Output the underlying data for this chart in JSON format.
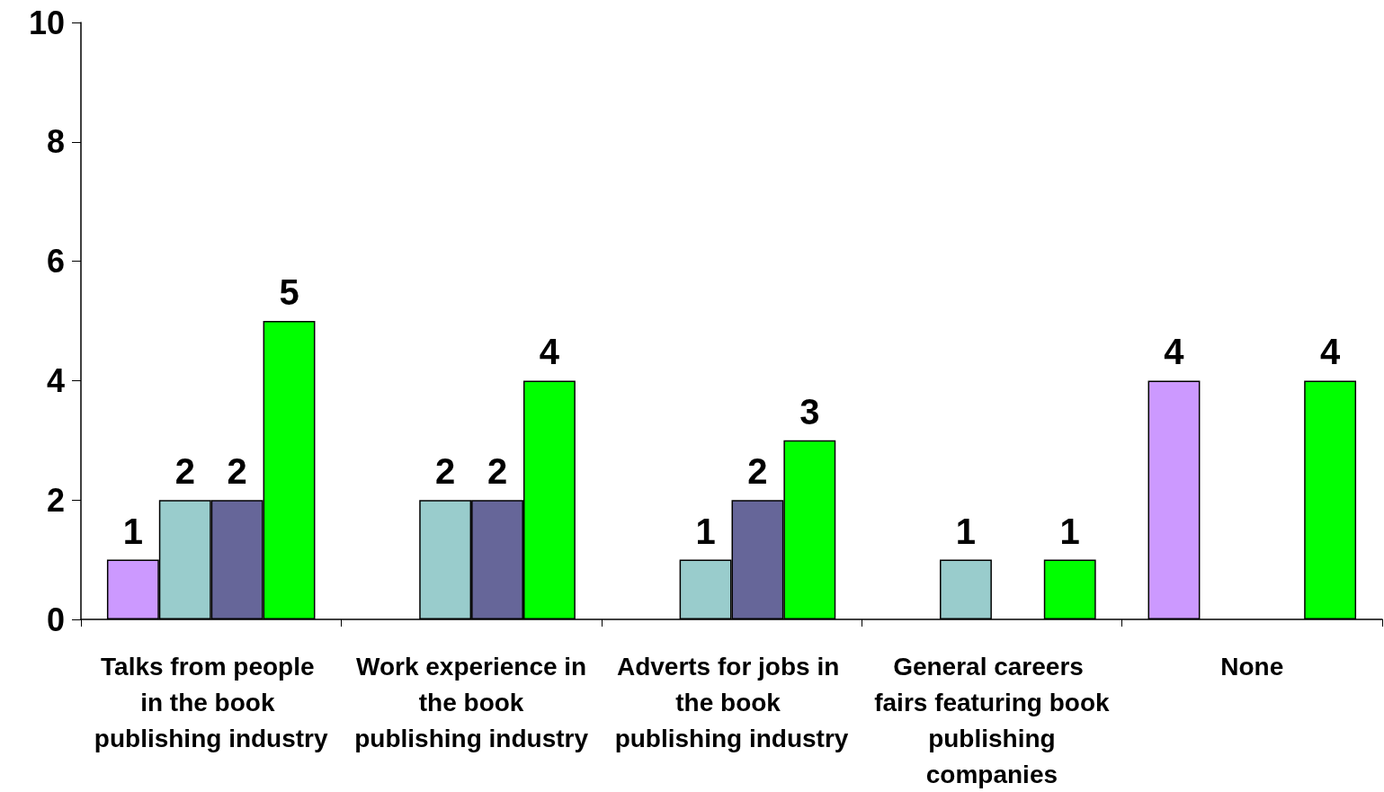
{
  "chart_data": {
    "type": "bar",
    "categories": [
      "Talks from people in the book publishing industry",
      "Work experience in the book publishing industry",
      "Adverts for jobs in the book publishing industry",
      "General careers fairs featuring book publishing companies",
      "None"
    ],
    "series": [
      {
        "color": "#cc99ff",
        "values": [
          1,
          null,
          null,
          null,
          4
        ]
      },
      {
        "color": "#99cccc",
        "values": [
          2,
          2,
          1,
          1,
          null
        ]
      },
      {
        "color": "#666699",
        "values": [
          2,
          2,
          2,
          null,
          null
        ]
      },
      {
        "color": "#00ff00",
        "values": [
          5,
          4,
          3,
          1,
          4
        ]
      }
    ],
    "ylim": [
      0,
      10
    ],
    "yticks": [
      0,
      2,
      4,
      6,
      8,
      10
    ],
    "grid": false,
    "data_labels": true
  }
}
